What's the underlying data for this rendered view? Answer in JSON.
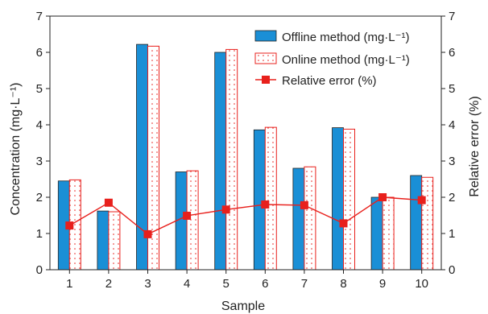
{
  "chart_data": {
    "type": "bar",
    "categories": [
      "1",
      "2",
      "3",
      "4",
      "5",
      "6",
      "7",
      "8",
      "9",
      "10"
    ],
    "series": [
      {
        "name": "Offline method (mg·L⁻¹)",
        "kind": "bar",
        "axis": "left",
        "color": "#1a8fd6",
        "values": [
          2.45,
          1.62,
          6.22,
          2.7,
          6.0,
          3.86,
          2.8,
          3.92,
          2.0,
          2.6
        ]
      },
      {
        "name": "Online method (mg·L⁻¹)",
        "kind": "bar",
        "axis": "left",
        "color": "#e8201c",
        "pattern": "dotted",
        "values": [
          2.48,
          1.6,
          6.17,
          2.73,
          6.08,
          3.93,
          2.84,
          3.88,
          2.0,
          2.55
        ]
      },
      {
        "name": "Relative error (%)",
        "kind": "line",
        "axis": "right",
        "color": "#e8201c",
        "values": [
          1.22,
          1.85,
          0.98,
          1.49,
          1.66,
          1.8,
          1.78,
          1.28,
          2.0,
          1.92
        ]
      }
    ],
    "xlabel": "Sample",
    "ylabel": "Concentration (mg·L⁻¹)",
    "y2label": "Relative error (%)",
    "ylim": [
      0,
      7
    ],
    "y2lim": [
      0,
      7
    ],
    "yticks": [
      "0",
      "1",
      "2",
      "3",
      "4",
      "5",
      "6",
      "7"
    ],
    "grid": false,
    "legend_position": "top-right"
  }
}
